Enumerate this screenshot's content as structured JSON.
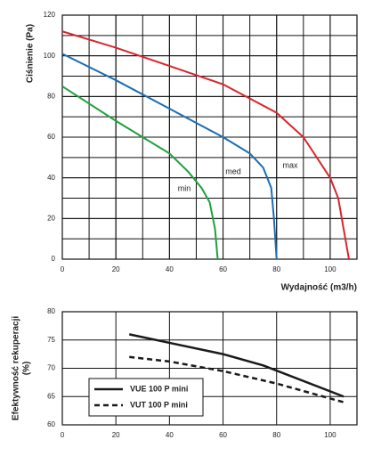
{
  "chart_data": [
    {
      "type": "line",
      "ylabel": "Ciśnienie (Pa)",
      "xlabel": "Wydajność (m3/h)",
      "xlim": [
        0,
        110
      ],
      "ylim": [
        0,
        120
      ],
      "xticks": [
        0,
        20,
        40,
        60,
        80,
        100
      ],
      "yticks": [
        0,
        20,
        40,
        60,
        80,
        100,
        120
      ],
      "grid": true,
      "grid_step": 10,
      "legend": "on-lines",
      "series": [
        {
          "name": "max",
          "color": "#d7262c",
          "style": "solid",
          "x": [
            0,
            20,
            40,
            60,
            80,
            90,
            100,
            103,
            105,
            107
          ],
          "values": [
            112,
            104,
            95,
            86,
            72,
            60,
            40,
            30,
            15,
            0
          ]
        },
        {
          "name": "med",
          "color": "#1b6db3",
          "style": "solid",
          "x": [
            0,
            20,
            40,
            60,
            70,
            75,
            78,
            79,
            80
          ],
          "values": [
            101,
            88,
            74,
            60,
            52,
            45,
            35,
            20,
            0
          ]
        },
        {
          "name": "min",
          "color": "#1ea13e",
          "style": "solid",
          "x": [
            0,
            20,
            40,
            47,
            52,
            55,
            57,
            58
          ],
          "values": [
            85,
            68,
            52,
            43,
            35,
            28,
            15,
            0
          ]
        }
      ]
    },
    {
      "type": "line",
      "ylabel": [
        "Efektywność rekuperacji",
        "(%)"
      ],
      "xlim": [
        0,
        110
      ],
      "ylim": [
        60,
        80
      ],
      "xticks": [
        0,
        20,
        40,
        60,
        80,
        100
      ],
      "yticks": [
        60,
        65,
        70,
        75,
        80
      ],
      "grid": true,
      "legend": "lower left",
      "series": [
        {
          "name": "VUE 100 P mini",
          "color": "#1a1a1a",
          "style": "solid",
          "x": [
            25,
            40,
            60,
            75,
            105
          ],
          "values": [
            76,
            74.5,
            72.5,
            70.5,
            65
          ]
        },
        {
          "name": "VUT 100 P mini",
          "color": "#1a1a1a",
          "style": "dashed",
          "x": [
            25,
            40,
            60,
            80,
            105
          ],
          "values": [
            72,
            71.2,
            69.5,
            67.3,
            64
          ]
        }
      ]
    }
  ]
}
